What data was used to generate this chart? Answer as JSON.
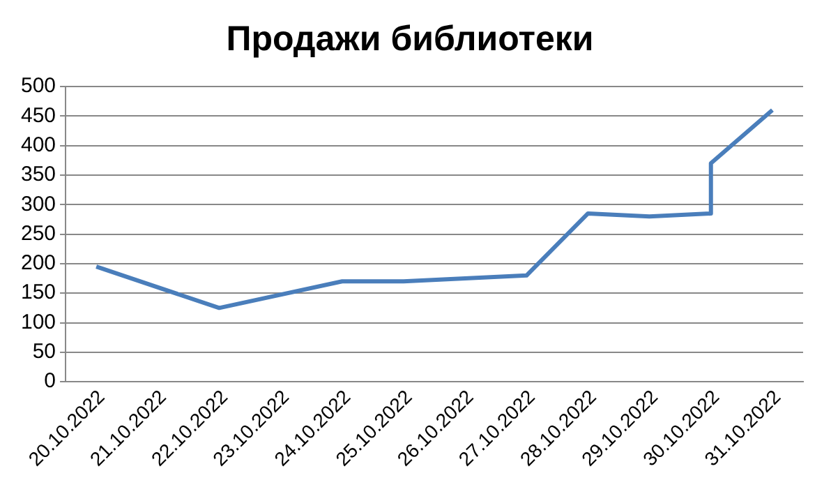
{
  "chart_data": {
    "type": "line",
    "title": "Продажи библиотеки",
    "x": [
      "2022-10-20",
      "2022-10-22",
      "2022-10-24",
      "2022-10-25",
      "2022-10-27",
      "2022-10-28",
      "2022-10-29",
      "2022-10-30",
      "2022-10-30",
      "2022-10-31"
    ],
    "series": [
      {
        "color": "#4a7ebb",
        "values": [
          195,
          125,
          170,
          170,
          180,
          285,
          280,
          285,
          370,
          460
        ]
      }
    ],
    "xlim": [
      "2022-10-19T12:00",
      "2022-10-31T12:00"
    ],
    "xticks": [
      {
        "value": "2022-10-20",
        "label": "20.10.2022"
      },
      {
        "value": "2022-10-21",
        "label": "21.10.2022"
      },
      {
        "value": "2022-10-22",
        "label": "22.10.2022"
      },
      {
        "value": "2022-10-23",
        "label": "23.10.2022"
      },
      {
        "value": "2022-10-24",
        "label": "24.10.2022"
      },
      {
        "value": "2022-10-25",
        "label": "25.10.2022"
      },
      {
        "value": "2022-10-26",
        "label": "26.10.2022"
      },
      {
        "value": "2022-10-27",
        "label": "27.10.2022"
      },
      {
        "value": "2022-10-28",
        "label": "28.10.2022"
      },
      {
        "value": "2022-10-29",
        "label": "29.10.2022"
      },
      {
        "value": "2022-10-30",
        "label": "30.10.2022"
      },
      {
        "value": "2022-10-31",
        "label": "31.10.2022"
      }
    ],
    "ylim": [
      0,
      500
    ],
    "yticks": [
      0,
      50,
      100,
      150,
      200,
      250,
      300,
      350,
      400,
      450,
      500
    ],
    "grid": "y",
    "marker": "none",
    "line_style": "solid",
    "legend": false
  }
}
